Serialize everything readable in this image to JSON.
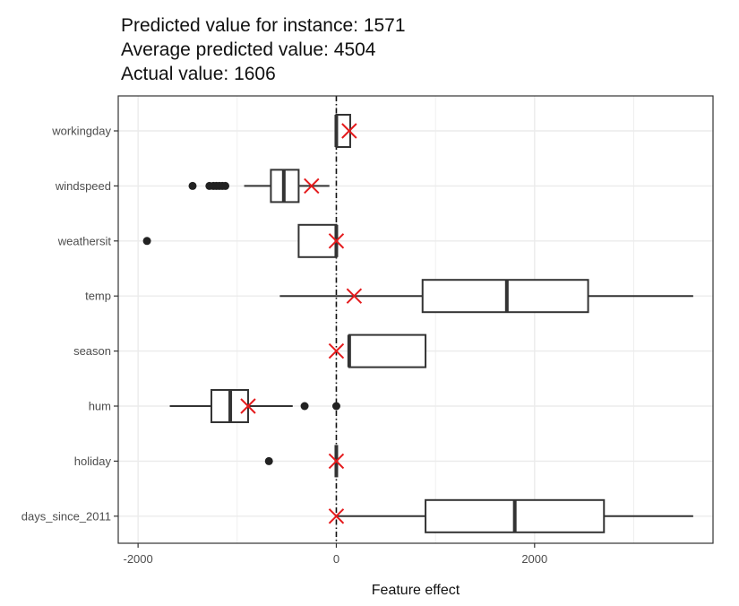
{
  "chart_data": {
    "type": "boxplot",
    "title_lines": [
      "Predicted value for instance: 1571",
      "Average predicted value: 4504",
      "Actual value: 1606"
    ],
    "xlabel": "Feature effect",
    "ylabel": "",
    "xlim": [
      -2200,
      3800
    ],
    "xticks": [
      -2000,
      0,
      2000
    ],
    "xtick_labels": [
      "-2000",
      "0",
      "2000"
    ],
    "grid": true,
    "reference_line": {
      "x": 0,
      "style": "dash-dot"
    },
    "colors": {
      "box": "#333333",
      "instance_marker": "#e41a1c",
      "grid": "#ebebeb",
      "panel_border": "#333333"
    },
    "categories": [
      "workingday",
      "windspeed",
      "weathersit",
      "temp",
      "season",
      "hum",
      "holiday",
      "days_since_2011"
    ],
    "boxes": [
      {
        "category": "workingday",
        "whisker_low": 0,
        "q1": 0,
        "median": 0,
        "q3": 140,
        "whisker_high": 140,
        "outliers": [],
        "instance_effect": 130
      },
      {
        "category": "windspeed",
        "whisker_low": -930,
        "q1": -660,
        "median": -530,
        "q3": -380,
        "whisker_high": -70,
        "outliers": [
          -1450,
          -1280,
          -1240,
          -1210,
          -1180,
          -1150,
          -1120
        ],
        "instance_effect": -250
      },
      {
        "category": "weathersit",
        "whisker_low": -380,
        "q1": -380,
        "median": 0,
        "q3": 0,
        "whisker_high": 0,
        "outliers": [
          -1910
        ],
        "instance_effect": 0
      },
      {
        "category": "temp",
        "whisker_low": -570,
        "q1": 870,
        "median": 1720,
        "q3": 2540,
        "whisker_high": 3600,
        "outliers": [],
        "instance_effect": 180
      },
      {
        "category": "season",
        "whisker_low": 130,
        "q1": 130,
        "median": 130,
        "q3": 900,
        "whisker_high": 900,
        "outliers": [],
        "instance_effect": 0
      },
      {
        "category": "hum",
        "whisker_low": -1680,
        "q1": -1260,
        "median": -1070,
        "q3": -890,
        "whisker_high": -440,
        "outliers": [
          -320,
          0
        ],
        "instance_effect": -890
      },
      {
        "category": "holiday",
        "whisker_low": 0,
        "q1": 0,
        "median": 0,
        "q3": 0,
        "whisker_high": 0,
        "outliers": [
          -680
        ],
        "instance_effect": 0
      },
      {
        "category": "days_since_2011",
        "whisker_low": 0,
        "q1": 900,
        "median": 1800,
        "q3": 2700,
        "whisker_high": 3600,
        "outliers": [],
        "instance_effect": 0
      }
    ]
  }
}
